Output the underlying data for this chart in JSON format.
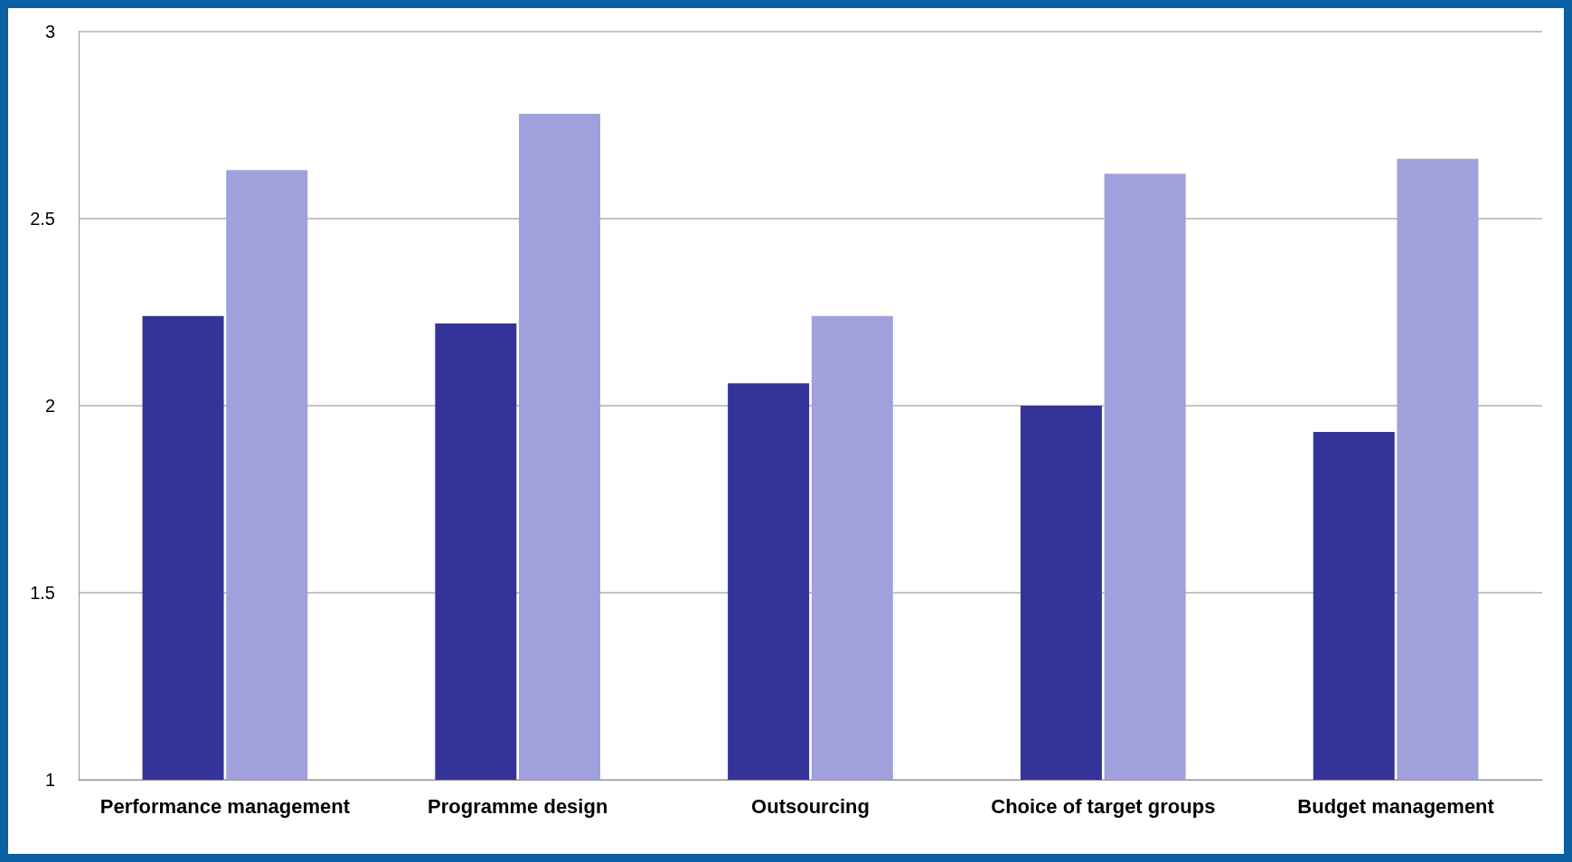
{
  "chart_data": {
    "type": "bar",
    "categories": [
      "Performance management",
      "Programme design",
      "Outsourcing",
      "Choice of target groups",
      "Budget management"
    ],
    "series": [
      {
        "color": "#333399",
        "values": [
          2.24,
          2.22,
          2.06,
          2.0,
          1.93
        ]
      },
      {
        "color": "#a0a0dc",
        "values": [
          2.63,
          2.78,
          2.24,
          2.62,
          2.66
        ]
      }
    ],
    "ylim": [
      1,
      3
    ],
    "yticks": [
      1,
      1.5,
      2,
      2.5,
      3
    ],
    "grid": "y"
  }
}
